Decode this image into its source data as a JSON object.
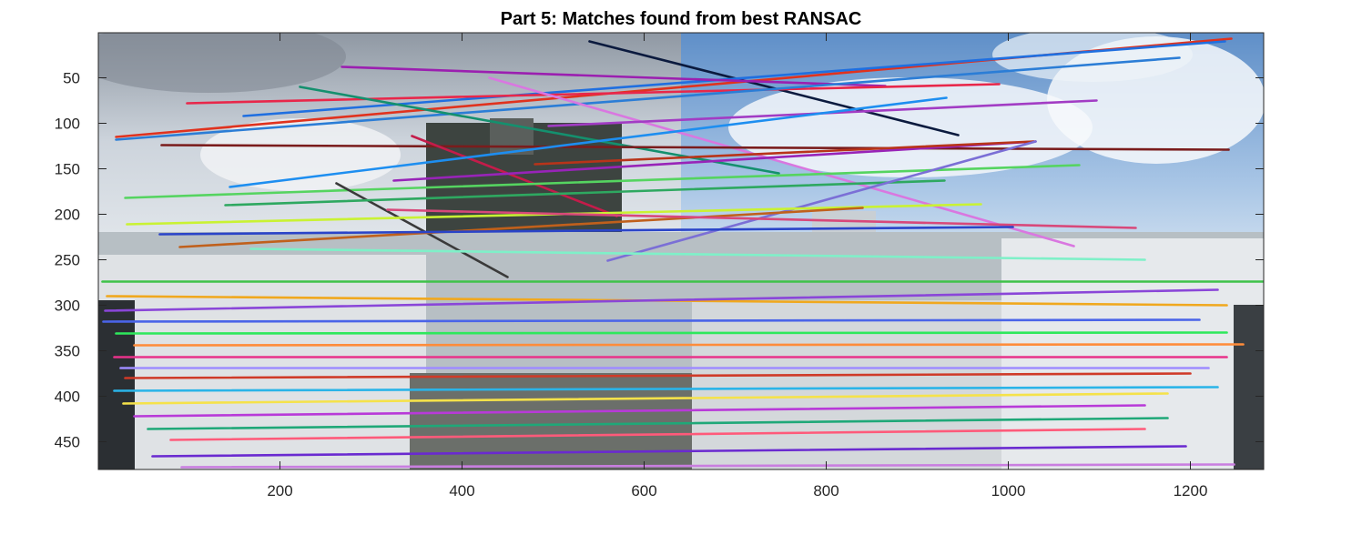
{
  "chart_data": {
    "type": "image_with_match_lines",
    "title": "Part 5: Matches found from best RANSAC",
    "xlabel": "",
    "ylabel": "",
    "xlim": [
      0.5,
      1280.5
    ],
    "ylim": [
      0.5,
      480.5
    ],
    "y_reversed": true,
    "x_ticks": [
      200,
      400,
      600,
      800,
      1000,
      1200
    ],
    "y_ticks": [
      50,
      100,
      150,
      200,
      250,
      300,
      350,
      400,
      450
    ],
    "image_split_x": 640,
    "matches": [
      {
        "x1": 540,
        "y1": 10,
        "x2": 945,
        "y2": 113,
        "color": "#0b1a3e"
      },
      {
        "x1": 20,
        "y1": 115,
        "x2": 1245,
        "y2": 7,
        "color": "#e0321e"
      },
      {
        "x1": 160,
        "y1": 92,
        "x2": 1238,
        "y2": 10,
        "color": "#1f6fe0"
      },
      {
        "x1": 268,
        "y1": 38,
        "x2": 865,
        "y2": 59,
        "color": "#9b1fb0"
      },
      {
        "x1": 98,
        "y1": 78,
        "x2": 990,
        "y2": 57,
        "color": "#e8274a"
      },
      {
        "x1": 20,
        "y1": 118,
        "x2": 1188,
        "y2": 28,
        "color": "#2b7dd6"
      },
      {
        "x1": 222,
        "y1": 60,
        "x2": 748,
        "y2": 155,
        "color": "#14906e"
      },
      {
        "x1": 430,
        "y1": 50,
        "x2": 1072,
        "y2": 235,
        "color": "#d977e0"
      },
      {
        "x1": 70,
        "y1": 124,
        "x2": 1242,
        "y2": 129,
        "color": "#7a1c1c"
      },
      {
        "x1": 495,
        "y1": 103,
        "x2": 1097,
        "y2": 75,
        "color": "#a23cc4"
      },
      {
        "x1": 345,
        "y1": 114,
        "x2": 570,
        "y2": 202,
        "color": "#c41c4a"
      },
      {
        "x1": 145,
        "y1": 170,
        "x2": 932,
        "y2": 72,
        "color": "#1d8ef0"
      },
      {
        "x1": 325,
        "y1": 163,
        "x2": 1030,
        "y2": 120,
        "color": "#9824b8"
      },
      {
        "x1": 480,
        "y1": 145,
        "x2": 1028,
        "y2": 120,
        "color": "#b8341a"
      },
      {
        "x1": 30,
        "y1": 182,
        "x2": 1078,
        "y2": 146,
        "color": "#55d460"
      },
      {
        "x1": 262,
        "y1": 166,
        "x2": 450,
        "y2": 269,
        "color": "#3a3a3a"
      },
      {
        "x1": 140,
        "y1": 190,
        "x2": 930,
        "y2": 163,
        "color": "#2ea860"
      },
      {
        "x1": 560,
        "y1": 251,
        "x2": 1030,
        "y2": 120,
        "color": "#7b6fd6"
      },
      {
        "x1": 32,
        "y1": 211,
        "x2": 970,
        "y2": 189,
        "color": "#c9f233"
      },
      {
        "x1": 90,
        "y1": 236,
        "x2": 840,
        "y2": 193,
        "color": "#c0601c"
      },
      {
        "x1": 318,
        "y1": 195,
        "x2": 1140,
        "y2": 215,
        "color": "#d8487a"
      },
      {
        "x1": 68,
        "y1": 222,
        "x2": 1005,
        "y2": 214,
        "color": "#2a44c8"
      },
      {
        "x1": 168,
        "y1": 238,
        "x2": 1150,
        "y2": 250,
        "color": "#7ff0c8"
      },
      {
        "x1": 5,
        "y1": 274,
        "x2": 1280,
        "y2": 274,
        "color": "#3fc24a"
      },
      {
        "x1": 10,
        "y1": 290,
        "x2": 1240,
        "y2": 300,
        "color": "#f0a81e"
      },
      {
        "x1": 8,
        "y1": 306,
        "x2": 1230,
        "y2": 283,
        "color": "#8a46d8"
      },
      {
        "x1": 6,
        "y1": 318,
        "x2": 1210,
        "y2": 316,
        "color": "#4a64e8"
      },
      {
        "x1": 20,
        "y1": 331,
        "x2": 1240,
        "y2": 330,
        "color": "#2ee85c"
      },
      {
        "x1": 40,
        "y1": 344,
        "x2": 1258,
        "y2": 343,
        "color": "#ff8c3a"
      },
      {
        "x1": 18,
        "y1": 357,
        "x2": 1240,
        "y2": 357,
        "color": "#e8328a"
      },
      {
        "x1": 25,
        "y1": 369,
        "x2": 1220,
        "y2": 369,
        "color": "#9e8cff"
      },
      {
        "x1": 30,
        "y1": 380,
        "x2": 1200,
        "y2": 375,
        "color": "#cf3a28"
      },
      {
        "x1": 18,
        "y1": 394,
        "x2": 1230,
        "y2": 390,
        "color": "#2ab4e8"
      },
      {
        "x1": 28,
        "y1": 408,
        "x2": 1175,
        "y2": 397,
        "color": "#f5e24a"
      },
      {
        "x1": 40,
        "y1": 422,
        "x2": 1150,
        "y2": 410,
        "color": "#b83ad8"
      },
      {
        "x1": 55,
        "y1": 436,
        "x2": 1175,
        "y2": 424,
        "color": "#1fa878"
      },
      {
        "x1": 80,
        "y1": 448,
        "x2": 1150,
        "y2": 436,
        "color": "#ff5a7a"
      },
      {
        "x1": 60,
        "y1": 466,
        "x2": 1195,
        "y2": 455,
        "color": "#6a2ad0"
      },
      {
        "x1": 92,
        "y1": 478,
        "x2": 1248,
        "y2": 475,
        "color": "#c97ee0"
      }
    ]
  }
}
